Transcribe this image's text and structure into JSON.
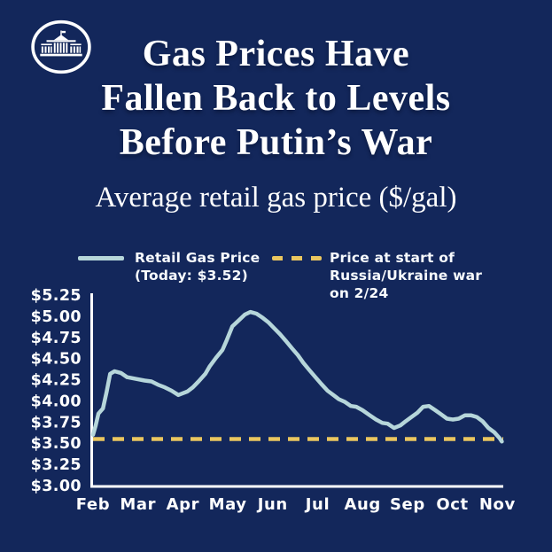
{
  "colors": {
    "background": "#13275b",
    "retail_line_blue": "#b6d6da",
    "war_line_gold": "#eac65f",
    "text_white": "#ffffff"
  },
  "logo": {
    "label": "White House logo"
  },
  "header": {
    "title_lines": [
      "Gas Prices Have",
      "Fallen Back to Levels",
      "Before Putin’s War"
    ],
    "subtitle": "Average retail gas price ($/gal)"
  },
  "legend": {
    "items": [
      {
        "label_lines": [
          "Retail Gas Price",
          "(Today: $3.52)"
        ],
        "swatch": "solid-line",
        "color": "#b6d6da"
      },
      {
        "label_lines": [
          "Price at start of",
          "Russia/Ukraine war",
          "on 2/24"
        ],
        "swatch": "dashed-line",
        "color": "#eac65f"
      }
    ]
  },
  "chart_data": {
    "type": "line",
    "title": "Average retail gas price ($/gal)",
    "x_tick_labels": [
      "Feb",
      "Mar",
      "Apr",
      "May",
      "Jun",
      "Jul",
      "Aug",
      "Sep",
      "Oct",
      "Nov"
    ],
    "y_tick_labels": [
      "$5.25",
      "$5.00",
      "$4.75",
      "$4.50",
      "$4.25",
      "$4.00",
      "$3.75",
      "$3.50",
      "$3.25",
      "$3.00"
    ],
    "ylim": [
      3.0,
      5.25
    ],
    "y_tick_step": 0.25,
    "grid": false,
    "legend_position": "top",
    "x_axis_note": "x values are months where 0 = Feb tick and 9 = Nov tick",
    "series": [
      {
        "name": "Retail Gas Price",
        "style": "solid",
        "color": "#b6d6da",
        "today_value": 3.52,
        "points": [
          [
            0.0,
            3.6
          ],
          [
            0.06,
            3.71
          ],
          [
            0.12,
            3.85
          ],
          [
            0.22,
            3.91
          ],
          [
            0.3,
            4.1
          ],
          [
            0.38,
            4.32
          ],
          [
            0.48,
            4.35
          ],
          [
            0.62,
            4.33
          ],
          [
            0.76,
            4.28
          ],
          [
            0.95,
            4.26
          ],
          [
            1.15,
            4.24
          ],
          [
            1.3,
            4.23
          ],
          [
            1.45,
            4.19
          ],
          [
            1.6,
            4.16
          ],
          [
            1.75,
            4.12
          ],
          [
            1.9,
            4.07
          ],
          [
            2.0,
            4.09
          ],
          [
            2.1,
            4.11
          ],
          [
            2.22,
            4.16
          ],
          [
            2.35,
            4.23
          ],
          [
            2.5,
            4.32
          ],
          [
            2.6,
            4.41
          ],
          [
            2.74,
            4.51
          ],
          [
            2.88,
            4.6
          ],
          [
            2.97,
            4.71
          ],
          [
            3.1,
            4.88
          ],
          [
            3.24,
            4.95
          ],
          [
            3.38,
            5.02
          ],
          [
            3.5,
            5.05
          ],
          [
            3.64,
            5.03
          ],
          [
            3.78,
            4.98
          ],
          [
            3.9,
            4.93
          ],
          [
            4.03,
            4.86
          ],
          [
            4.16,
            4.79
          ],
          [
            4.29,
            4.71
          ],
          [
            4.43,
            4.62
          ],
          [
            4.56,
            4.54
          ],
          [
            4.68,
            4.45
          ],
          [
            4.82,
            4.36
          ],
          [
            4.95,
            4.28
          ],
          [
            5.08,
            4.2
          ],
          [
            5.22,
            4.12
          ],
          [
            5.35,
            4.07
          ],
          [
            5.47,
            4.02
          ],
          [
            5.6,
            3.99
          ],
          [
            5.74,
            3.94
          ],
          [
            5.86,
            3.93
          ],
          [
            6.0,
            3.89
          ],
          [
            6.16,
            3.83
          ],
          [
            6.3,
            3.78
          ],
          [
            6.44,
            3.74
          ],
          [
            6.56,
            3.73
          ],
          [
            6.7,
            3.68
          ],
          [
            6.84,
            3.71
          ],
          [
            6.96,
            3.76
          ],
          [
            7.09,
            3.81
          ],
          [
            7.22,
            3.86
          ],
          [
            7.35,
            3.93
          ],
          [
            7.48,
            3.94
          ],
          [
            7.62,
            3.89
          ],
          [
            7.75,
            3.84
          ],
          [
            7.88,
            3.79
          ],
          [
            8.01,
            3.78
          ],
          [
            8.14,
            3.79
          ],
          [
            8.28,
            3.83
          ],
          [
            8.41,
            3.83
          ],
          [
            8.54,
            3.81
          ],
          [
            8.67,
            3.76
          ],
          [
            8.8,
            3.68
          ],
          [
            8.93,
            3.63
          ],
          [
            9.05,
            3.56
          ],
          [
            9.1,
            3.52
          ]
        ]
      },
      {
        "name": "Price at start of Russia/Ukraine war on 2/24",
        "style": "dashed",
        "color": "#eac65f",
        "value": 3.55
      }
    ]
  }
}
